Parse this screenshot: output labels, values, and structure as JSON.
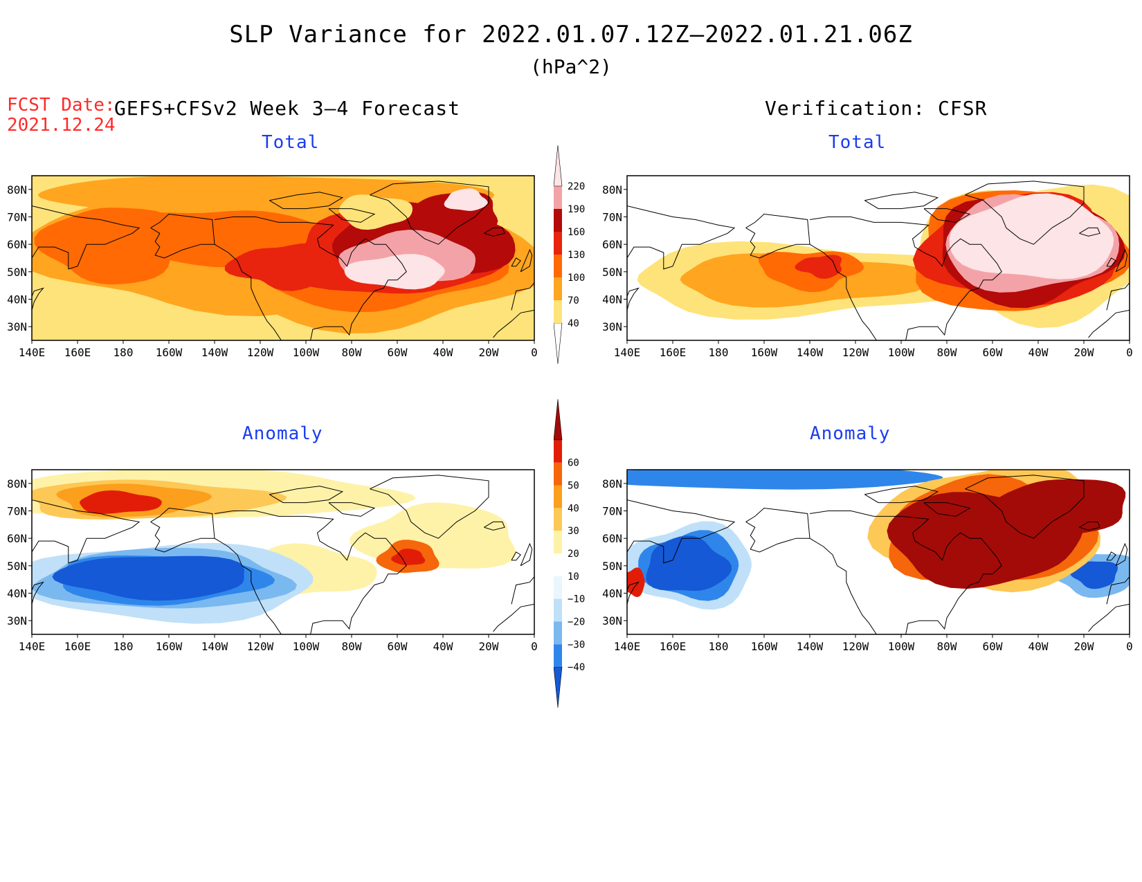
{
  "figure": {
    "title": "SLP Variance for 2022.01.07.12Z–2022.01.21.06Z",
    "units": "(hPa^2)",
    "fcst_label": "FCST Date:",
    "fcst_date": "2021.12.24",
    "forecast_title": "GEFS+CFSv2 Week 3–4 Forecast",
    "verification_title": "Verification: CFSR"
  },
  "panels": {
    "top_left": {
      "subtitle": "Total"
    },
    "top_right": {
      "subtitle": "Total"
    },
    "bottom_left": {
      "subtitle": "Anomaly"
    },
    "bottom_right": {
      "subtitle": "Anomaly"
    }
  },
  "map_axes": {
    "lon_ticks": [
      "140E",
      "160E",
      "180",
      "160W",
      "140W",
      "120W",
      "100W",
      "80W",
      "60W",
      "40W",
      "20W",
      "0"
    ],
    "lat_ticks": [
      "80N",
      "70N",
      "60N",
      "50N",
      "40N",
      "30N"
    ],
    "lon_range_deg_east": [
      140,
      360
    ],
    "lat_range": [
      25,
      85
    ]
  },
  "colorbars": {
    "total": {
      "levels": [
        "40",
        "70",
        "100",
        "130",
        "160",
        "190",
        "220"
      ],
      "colors": [
        "#ffffff",
        "#fde37a",
        "#ffa51f",
        "#ff6a05",
        "#e8230e",
        "#b40a0a",
        "#f3a3a8",
        "#fde4e6"
      ]
    },
    "anomaly": {
      "levels": [
        "−40",
        "−30",
        "−20",
        "−10",
        "10",
        "20",
        "30",
        "40",
        "50",
        "60"
      ],
      "colors": [
        "#1559d6",
        "#2f86ea",
        "#7ab8f0",
        "#bfe0f8",
        "#e9f6fd",
        "#ffffff",
        "#fdf2a8",
        "#fdc855",
        "#fb9f1c",
        "#f6660a",
        "#e11d08",
        "#a30b08"
      ]
    }
  }
}
